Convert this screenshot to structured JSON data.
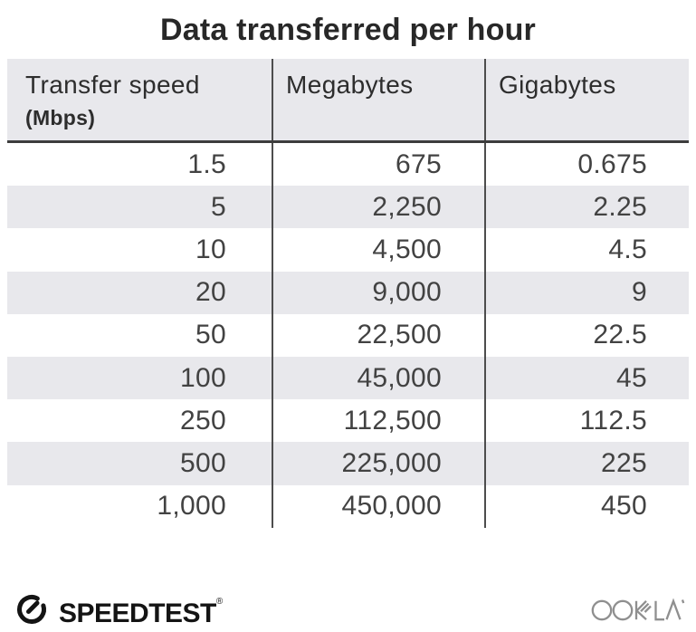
{
  "title": "Data transferred per hour",
  "chart_data": {
    "type": "table",
    "title": "Data transferred per hour",
    "columns": [
      "Transfer speed (Mbps)",
      "Megabytes",
      "Gigabytes"
    ],
    "rows_numeric": [
      [
        1.5,
        675,
        0.675
      ],
      [
        5,
        2250,
        2.25
      ],
      [
        10,
        4500,
        4.5
      ],
      [
        20,
        9000,
        9
      ],
      [
        50,
        22500,
        22.5
      ],
      [
        100,
        45000,
        45
      ],
      [
        250,
        112500,
        112.5
      ],
      [
        500,
        225000,
        225
      ],
      [
        1000,
        450000,
        450
      ]
    ],
    "rows_display": [
      [
        "1.5",
        "675",
        "0.675"
      ],
      [
        "5",
        "2,250",
        "2.25"
      ],
      [
        "10",
        "4,500",
        "4.5"
      ],
      [
        "20",
        "9,000",
        "9"
      ],
      [
        "50",
        "22,500",
        "22.5"
      ],
      [
        "100",
        "45,000",
        "45"
      ],
      [
        "250",
        "112,500",
        "112.5"
      ],
      [
        "500",
        "225,000",
        "225"
      ],
      [
        "1,000",
        "450,000",
        "450"
      ]
    ],
    "layout": {
      "row_striping": "alternating white and light gray, first data row white",
      "alignment": "numbers right-aligned, headers left-aligned"
    }
  },
  "header": {
    "col1_label": "Transfer speed",
    "col1_sublabel": "(Mbps)",
    "col2_label": "Megabytes",
    "col3_label": "Gigabytes"
  },
  "footer": {
    "speedtest_label": "SPEEDTEST",
    "speedtest_trademark": "®",
    "ookla_label": "OOKLA"
  },
  "colors": {
    "title_text": "#282828",
    "header_bg": "#e8e8ec",
    "stripe": "#e8e8ec",
    "divider": "#4d4d4d",
    "header_border": "#3d3d3d",
    "number_text": "#424242",
    "speedtest_black": "#141414",
    "ookla_gray": "#8f8f8f"
  }
}
